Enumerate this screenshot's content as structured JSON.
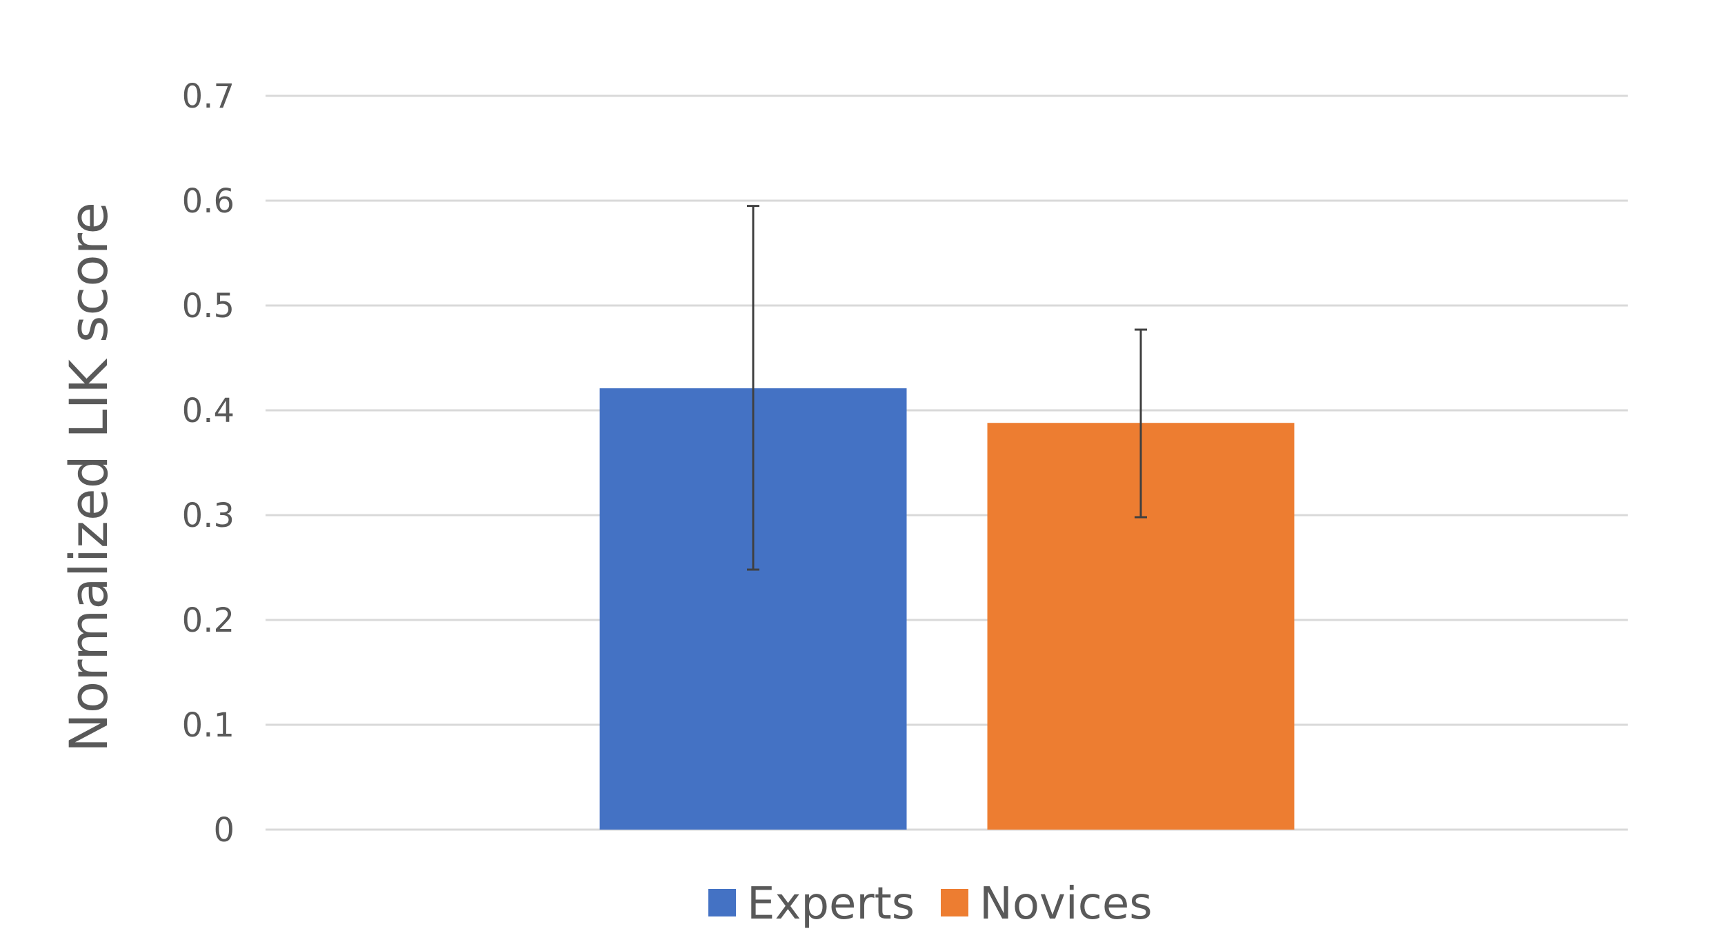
{
  "chart_data": {
    "type": "bar",
    "title": "",
    "xlabel": "",
    "ylabel": "Normalized  LIK score",
    "ylim": [
      0,
      0.7
    ],
    "yticks": [
      "0",
      "0.1",
      "0.2",
      "0.3",
      "0.4",
      "0.5",
      "0.6",
      "0.7"
    ],
    "categories": [
      ""
    ],
    "grid": true,
    "legend_position": "bottom",
    "series": [
      {
        "name": "Experts",
        "values": [
          0.421
        ],
        "error_low": [
          0.248
        ],
        "error_high": [
          0.595
        ],
        "color": "#4472C4"
      },
      {
        "name": "Novices",
        "values": [
          0.388
        ],
        "error_low": [
          0.298
        ],
        "error_high": [
          0.477
        ],
        "color": "#ED7D31"
      }
    ],
    "colors": {
      "gridline": "#D9D9D9",
      "text": "#595959",
      "error_bar": "#404040"
    }
  }
}
